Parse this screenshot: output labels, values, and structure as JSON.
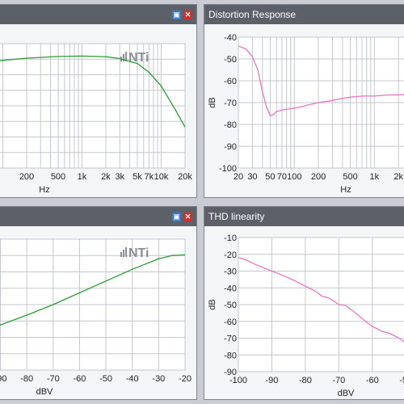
{
  "panels": {
    "tl": {
      "title": "",
      "xlabel": "Hz",
      "ylabel": "",
      "save_icon": "save-icon",
      "close_icon": "close-icon"
    },
    "tr": {
      "title": "Distortion Response",
      "xlabel": "Hz",
      "ylabel": "dB"
    },
    "bl": {
      "title": "",
      "xlabel": "dBV",
      "ylabel": "",
      "save_icon": "save-icon",
      "close_icon": "close-icon"
    },
    "br": {
      "title": "THD linearity",
      "xlabel": "dBV",
      "ylabel": "dB"
    }
  },
  "logo": "NTi",
  "colors": {
    "green": "#2e9a35",
    "pink": "#e776c4",
    "titlebar": "#5b6069"
  },
  "chart_data": [
    {
      "type": "line",
      "title": "",
      "xlabel": "Hz",
      "ylabel": "",
      "x_scale": "log",
      "xlim": [
        80,
        20000
      ],
      "ylim": [
        0,
        1
      ],
      "x_ticks": [
        {
          "v": 200,
          "l": "200"
        },
        {
          "v": 500,
          "l": "500"
        },
        {
          "v": 1000,
          "l": "1k"
        },
        {
          "v": 2000,
          "l": "2k"
        },
        {
          "v": 3000,
          "l": "3k"
        },
        {
          "v": 5000,
          "l": "5k"
        },
        {
          "v": 7000,
          "l": "7k"
        },
        {
          "v": 10000,
          "l": "10k"
        },
        {
          "v": 20000,
          "l": "20k"
        }
      ],
      "series": [
        {
          "name": "",
          "color": "#2e9a35",
          "points": [
            [
              80,
              0.86
            ],
            [
              200,
              0.883
            ],
            [
              500,
              0.897
            ],
            [
              1000,
              0.9
            ],
            [
              2000,
              0.895
            ],
            [
              3000,
              0.88
            ],
            [
              5000,
              0.84
            ],
            [
              7000,
              0.77
            ],
            [
              10000,
              0.66
            ],
            [
              15000,
              0.47
            ],
            [
              20000,
              0.33
            ]
          ]
        }
      ]
    },
    {
      "type": "line",
      "title": "Distortion Response",
      "xlabel": "Hz",
      "ylabel": "dB",
      "x_scale": "log",
      "xlim": [
        20,
        4000
      ],
      "ylim": [
        -100,
        -40
      ],
      "x_ticks": [
        {
          "v": 20,
          "l": "20"
        },
        {
          "v": 30,
          "l": "30"
        },
        {
          "v": 50,
          "l": "50"
        },
        {
          "v": 70,
          "l": "70"
        },
        {
          "v": 100,
          "l": "100"
        },
        {
          "v": 200,
          "l": "200"
        },
        {
          "v": 500,
          "l": "500"
        },
        {
          "v": 1000,
          "l": "1k"
        },
        {
          "v": 2000,
          "l": "2k"
        }
      ],
      "y_ticks": [
        -40,
        -50,
        -60,
        -70,
        -80,
        -90,
        -100
      ],
      "series": [
        {
          "name": "",
          "color": "#e776c4",
          "points": [
            [
              20,
              -44
            ],
            [
              25,
              -45.5
            ],
            [
              30,
              -49
            ],
            [
              35,
              -55
            ],
            [
              40,
              -65
            ],
            [
              45,
              -72
            ],
            [
              50,
              -76
            ],
            [
              55,
              -75.5
            ],
            [
              60,
              -74
            ],
            [
              70,
              -73.5
            ],
            [
              80,
              -73
            ],
            [
              100,
              -72.5
            ],
            [
              120,
              -72
            ],
            [
              150,
              -71
            ],
            [
              200,
              -70
            ],
            [
              300,
              -69
            ],
            [
              400,
              -68
            ],
            [
              500,
              -67.5
            ],
            [
              700,
              -67
            ],
            [
              1000,
              -67
            ],
            [
              1500,
              -66.5
            ],
            [
              2000,
              -66.5
            ],
            [
              3000,
              -66
            ],
            [
              4000,
              -66
            ]
          ]
        }
      ]
    },
    {
      "type": "line",
      "title": "",
      "xlabel": "dBV",
      "ylabel": "",
      "xlim": [
        -92,
        -20
      ],
      "ylim": [
        0,
        1
      ],
      "x_ticks": [
        {
          "v": -90,
          "l": "-90"
        },
        {
          "v": -80,
          "l": "-80"
        },
        {
          "v": -70,
          "l": "-70"
        },
        {
          "v": -60,
          "l": "-60"
        },
        {
          "v": -50,
          "l": "-50"
        },
        {
          "v": -40,
          "l": "-40"
        },
        {
          "v": -30,
          "l": "-30"
        },
        {
          "v": -20,
          "l": "-20"
        }
      ],
      "series": [
        {
          "name": "",
          "color": "#2e9a35",
          "points": [
            [
              -92,
              0.33
            ],
            [
              -80,
              0.42
            ],
            [
              -70,
              0.5
            ],
            [
              -60,
              0.59
            ],
            [
              -50,
              0.68
            ],
            [
              -40,
              0.77
            ],
            [
              -35,
              0.81
            ],
            [
              -30,
              0.85
            ],
            [
              -25,
              0.875
            ],
            [
              -20,
              0.88
            ]
          ]
        }
      ]
    },
    {
      "type": "line",
      "title": "THD linearity",
      "xlabel": "dBV",
      "ylabel": "dB",
      "xlim": [
        -100,
        -45
      ],
      "ylim": [
        -90,
        -10
      ],
      "x_ticks": [
        {
          "v": -100,
          "l": "-100"
        },
        {
          "v": -90,
          "l": "-90"
        },
        {
          "v": -80,
          "l": "-80"
        },
        {
          "v": -70,
          "l": "-70"
        },
        {
          "v": -60,
          "l": "-60"
        },
        {
          "v": -50,
          "l": "-50"
        }
      ],
      "y_ticks": [
        -10,
        -20,
        -30,
        -40,
        -50,
        -60,
        -70,
        -80,
        -90
      ],
      "series": [
        {
          "name": "",
          "color": "#e776c4",
          "points": [
            [
              -100,
              -22
            ],
            [
              -98,
              -23
            ],
            [
              -95,
              -26
            ],
            [
              -90,
              -30
            ],
            [
              -85,
              -34
            ],
            [
              -80,
              -39
            ],
            [
              -77,
              -42
            ],
            [
              -75,
              -45
            ],
            [
              -73,
              -46
            ],
            [
              -70,
              -50
            ],
            [
              -68,
              -50.5
            ],
            [
              -65,
              -55
            ],
            [
              -62,
              -60
            ],
            [
              -60,
              -63
            ],
            [
              -57,
              -66
            ],
            [
              -55,
              -67
            ],
            [
              -52,
              -70
            ],
            [
              -50,
              -73
            ],
            [
              -47,
              -76
            ],
            [
              -45,
              -78
            ]
          ]
        }
      ]
    }
  ]
}
